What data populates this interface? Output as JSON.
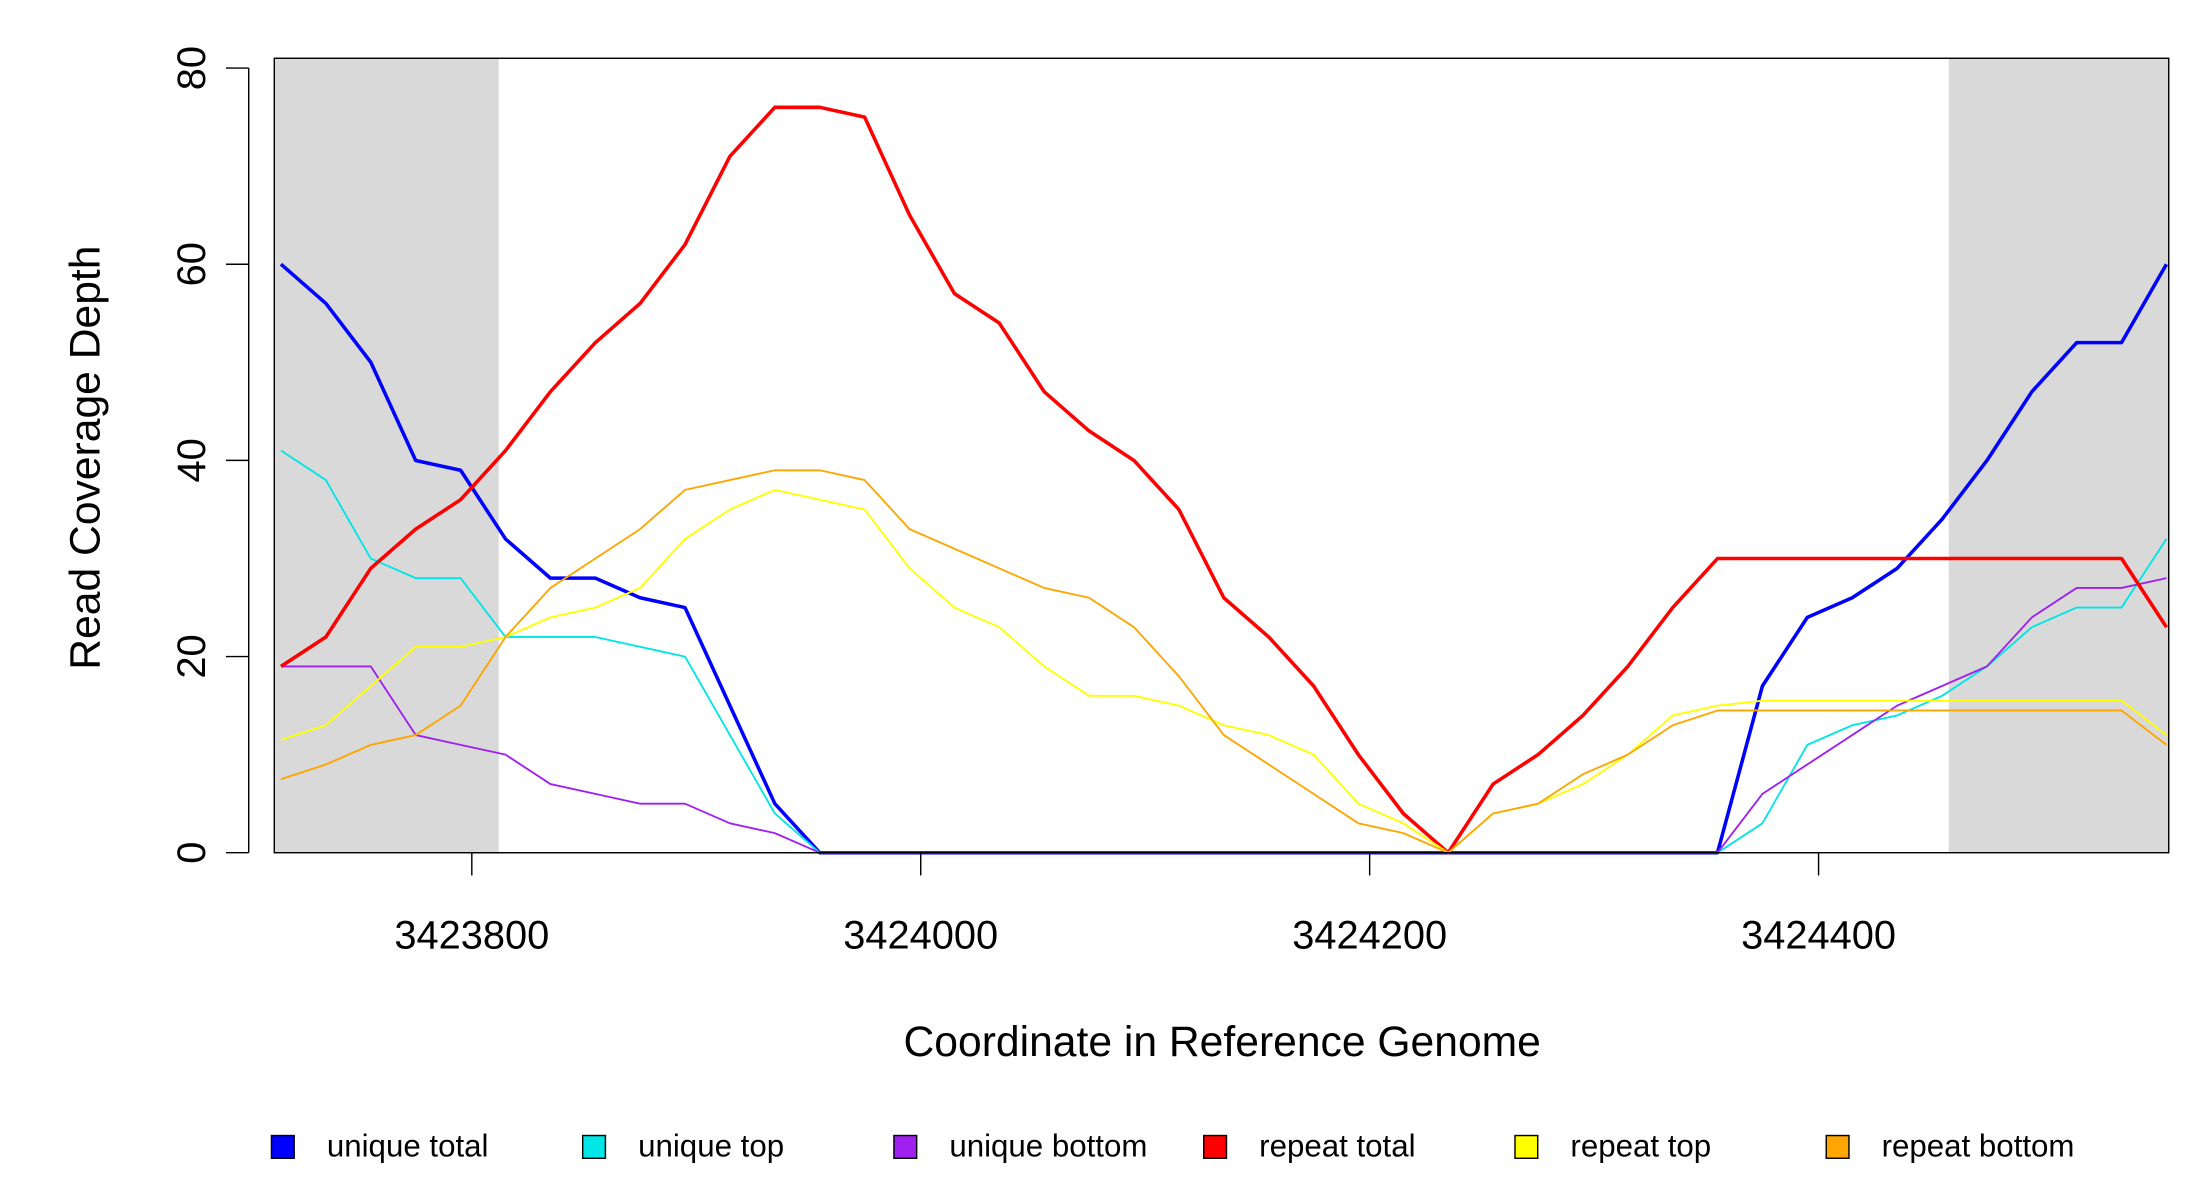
{
  "chart_data": {
    "type": "line",
    "x_label": "Coordinate in Reference Genome",
    "y_label": "Read Coverage Depth",
    "xlim": [
      3423712,
      3424556
    ],
    "ylim": [
      0,
      81
    ],
    "xticks": [
      3423800,
      3424000,
      3424200,
      3424400
    ],
    "yticks": [
      0,
      20,
      40,
      60,
      80
    ],
    "shaded_regions": [
      [
        3423712,
        3423812
      ],
      [
        3424458,
        3424556
      ]
    ],
    "shade_color": "#d9d9d9",
    "x": [
      3423715,
      3423735,
      3423755,
      3423775,
      3423795,
      3423815,
      3423835,
      3423855,
      3423875,
      3423895,
      3423915,
      3423935,
      3423955,
      3423975,
      3423995,
      3424015,
      3424035,
      3424055,
      3424075,
      3424095,
      3424115,
      3424135,
      3424155,
      3424175,
      3424195,
      3424215,
      3424235,
      3424255,
      3424275,
      3424295,
      3424315,
      3424335,
      3424355,
      3424375,
      3424395,
      3424415,
      3424435,
      3424455,
      3424475,
      3424495,
      3424515,
      3424535,
      3424555
    ],
    "series": [
      {
        "name": "unique total",
        "color": "#0000ff",
        "width": 2.5,
        "values": [
          60,
          56,
          50,
          40,
          39,
          32,
          28,
          28,
          26,
          25,
          15,
          5,
          0,
          0,
          0,
          0,
          0,
          0,
          0,
          0,
          0,
          0,
          0,
          0,
          0,
          0,
          0,
          0,
          0,
          0,
          0,
          0,
          0,
          17,
          24,
          26,
          29,
          34,
          40,
          47,
          52,
          52,
          60
        ]
      },
      {
        "name": "unique top",
        "color": "#00e5e5",
        "width": 1.3,
        "values": [
          41,
          38,
          30,
          28,
          28,
          22,
          22,
          22,
          21,
          20,
          12,
          4,
          0,
          0,
          0,
          0,
          0,
          0,
          0,
          0,
          0,
          0,
          0,
          0,
          0,
          0,
          0,
          0,
          0,
          0,
          0,
          0,
          0,
          3,
          11,
          13,
          14,
          16,
          19,
          23,
          25,
          25,
          32
        ]
      },
      {
        "name": "unique bottom",
        "color": "#a020f0",
        "width": 1.3,
        "values": [
          19,
          19,
          19,
          12,
          11,
          10,
          7,
          6,
          5,
          5,
          3,
          2,
          0,
          0,
          0,
          0,
          0,
          0,
          0,
          0,
          0,
          0,
          0,
          0,
          0,
          0,
          0,
          0,
          0,
          0,
          0,
          0,
          0,
          6,
          9,
          12,
          15,
          17,
          19,
          24,
          27,
          27,
          28
        ]
      },
      {
        "name": "repeat total",
        "color": "#ff0000",
        "width": 2.5,
        "values": [
          19,
          22,
          29,
          33,
          36,
          41,
          47,
          52,
          56,
          62,
          71,
          76,
          76,
          75,
          65,
          57,
          54,
          47,
          43,
          40,
          35,
          26,
          22,
          17,
          10,
          4,
          0,
          7,
          10,
          14,
          19,
          25,
          30,
          30,
          30,
          30,
          30,
          30,
          30,
          30,
          30,
          30,
          23
        ]
      },
      {
        "name": "repeat top",
        "color": "#ffff00",
        "width": 1.3,
        "values": [
          11.5,
          13,
          17,
          21,
          21,
          22,
          24,
          25,
          27,
          32,
          35,
          37,
          36,
          35,
          29,
          25,
          23,
          19,
          16,
          16,
          15,
          13,
          12,
          10,
          5,
          3,
          0,
          4,
          5,
          7,
          10,
          14,
          15,
          15.5,
          15.5,
          15.5,
          15.5,
          15.5,
          15.5,
          15.5,
          15.5,
          15.5,
          12
        ]
      },
      {
        "name": "repeat bottom",
        "color": "#ffa500",
        "width": 1.3,
        "values": [
          7.5,
          9,
          11,
          12,
          15,
          22,
          27,
          30,
          33,
          37,
          38,
          39,
          39,
          38,
          33,
          31,
          29,
          27,
          26,
          23,
          18,
          12,
          9,
          6,
          3,
          2,
          0,
          4,
          5,
          8,
          10,
          13,
          14.5,
          14.5,
          14.5,
          14.5,
          14.5,
          14.5,
          14.5,
          14.5,
          14.5,
          14.5,
          11
        ]
      }
    ]
  }
}
